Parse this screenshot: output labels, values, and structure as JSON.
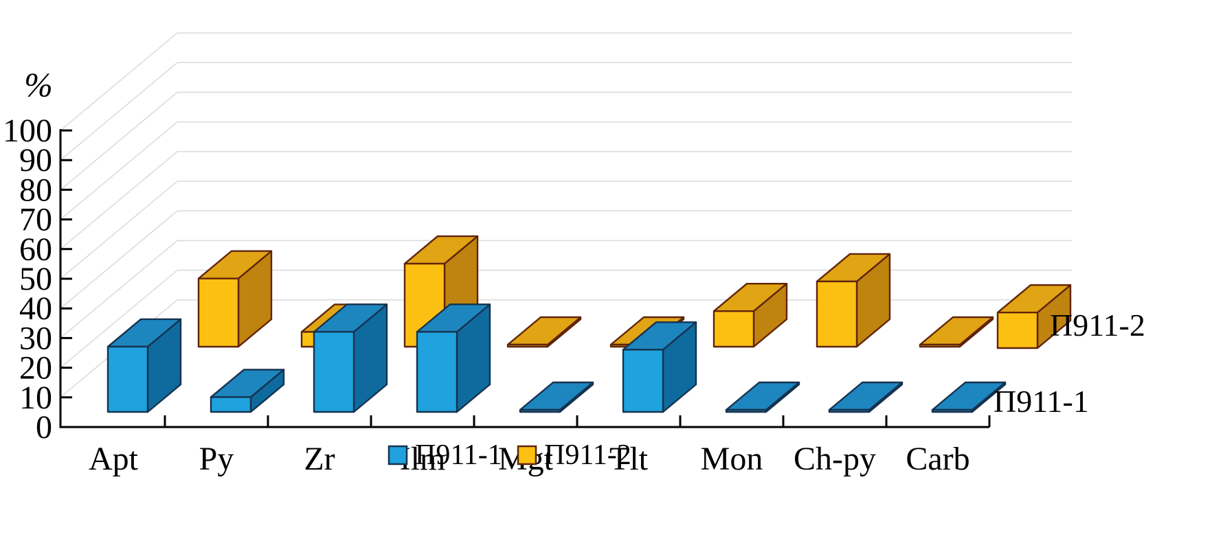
{
  "chart_data": {
    "type": "bar",
    "projection": "3d",
    "title": "",
    "ylabel": "%",
    "categories": [
      "Apt",
      "Py",
      "Zr",
      "Ilm",
      "Mgt",
      "Tlt",
      "Mon",
      "Ch-py",
      "Carb"
    ],
    "series": [
      {
        "name": "П911-1",
        "row": "front",
        "front_color": "#1fa2dd",
        "top_color": "#1d86bf",
        "side_color": "#0f6b9e",
        "outline_color": "#16324f",
        "values": [
          22,
          5,
          27,
          27,
          0,
          21,
          0,
          0,
          0
        ]
      },
      {
        "name": "П911-2",
        "row": "back",
        "front_color": "#fcc013",
        "top_color": "#e0a414",
        "side_color": "#bf8310",
        "outline_color": "#5f2409",
        "values": [
          null,
          23,
          5,
          28,
          0,
          0,
          12,
          22,
          0
        ]
      }
    ],
    "ylim": [
      0,
      100
    ],
    "ytick_step": 10,
    "grid": "on",
    "row_labels": {
      "back": "П911-2",
      "front": "П911-1"
    },
    "row_end_marker": {
      "series": "П911-2",
      "value": 12
    },
    "legend": [
      {
        "label": "П911-1",
        "color": "#1fa2dd",
        "outline": "#16324f"
      },
      {
        "label": "П911-2",
        "color": "#fcc013",
        "outline": "#5f2409"
      }
    ],
    "legend_position": "bottom",
    "gridline_color": "#dcdcdc",
    "axis_color": "#000000"
  }
}
